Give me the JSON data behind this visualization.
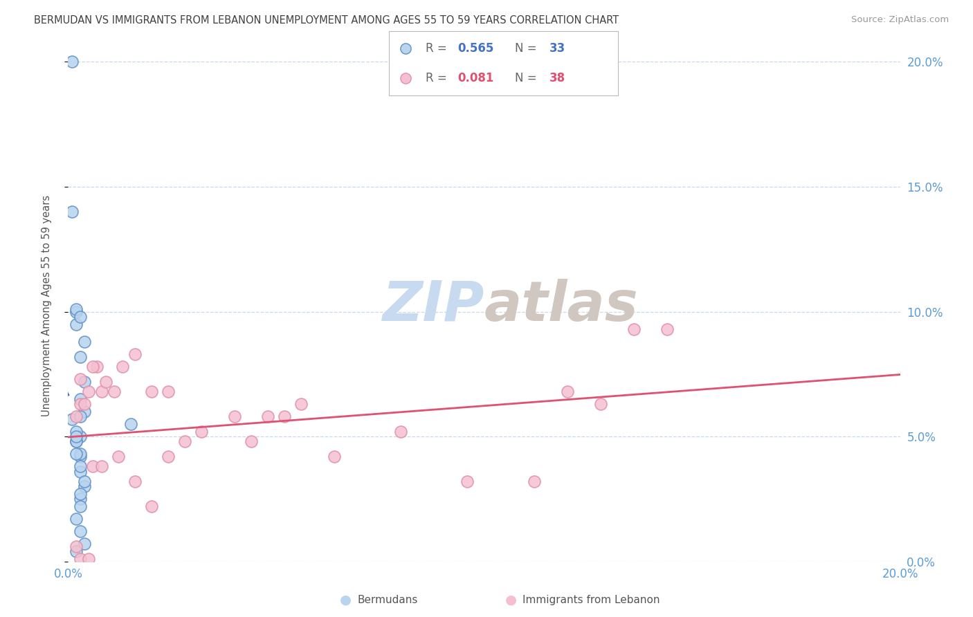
{
  "title": "BERMUDAN VS IMMIGRANTS FROM LEBANON UNEMPLOYMENT AMONG AGES 55 TO 59 YEARS CORRELATION CHART",
  "source": "Source: ZipAtlas.com",
  "ylabel": "Unemployment Among Ages 55 to 59 years",
  "xmin": 0.0,
  "xmax": 0.2,
  "ymin": 0.0,
  "ymax": 0.205,
  "yticks": [
    0.0,
    0.05,
    0.1,
    0.15,
    0.2
  ],
  "ytick_labels": [
    "0.0%",
    "5.0%",
    "10.0%",
    "15.0%",
    "20.0%"
  ],
  "xticks": [
    0.0,
    0.05,
    0.1,
    0.15,
    0.2
  ],
  "xtick_labels": [
    "0.0%",
    "",
    "",
    "",
    "20.0%"
  ],
  "blue_R": "0.565",
  "blue_N": "33",
  "pink_R": "0.081",
  "pink_N": "38",
  "bermudans_x": [
    0.001,
    0.002,
    0.002,
    0.001,
    0.003,
    0.002,
    0.003,
    0.004,
    0.003,
    0.004,
    0.003,
    0.004,
    0.002,
    0.002,
    0.003,
    0.003,
    0.002,
    0.003,
    0.003,
    0.004,
    0.003,
    0.003,
    0.002,
    0.003,
    0.004,
    0.002,
    0.003,
    0.004,
    0.003,
    0.002,
    0.015,
    0.001,
    0.002
  ],
  "bermudans_y": [
    0.14,
    0.1,
    0.095,
    0.057,
    0.05,
    0.101,
    0.098,
    0.088,
    0.082,
    0.072,
    0.065,
    0.06,
    0.052,
    0.048,
    0.042,
    0.058,
    0.048,
    0.043,
    0.036,
    0.03,
    0.025,
    0.022,
    0.017,
    0.012,
    0.007,
    0.043,
    0.038,
    0.032,
    0.027,
    0.05,
    0.055,
    0.2,
    0.004
  ],
  "lebanon_x": [
    0.002,
    0.003,
    0.005,
    0.003,
    0.007,
    0.004,
    0.006,
    0.008,
    0.009,
    0.011,
    0.013,
    0.016,
    0.02,
    0.024,
    0.028,
    0.032,
    0.04,
    0.044,
    0.048,
    0.052,
    0.056,
    0.064,
    0.08,
    0.096,
    0.112,
    0.128,
    0.144,
    0.002,
    0.003,
    0.005,
    0.006,
    0.008,
    0.012,
    0.016,
    0.02,
    0.024,
    0.12,
    0.136
  ],
  "lebanon_y": [
    0.058,
    0.063,
    0.068,
    0.073,
    0.078,
    0.063,
    0.078,
    0.068,
    0.072,
    0.068,
    0.078,
    0.083,
    0.068,
    0.068,
    0.048,
    0.052,
    0.058,
    0.048,
    0.058,
    0.058,
    0.063,
    0.042,
    0.052,
    0.032,
    0.032,
    0.063,
    0.093,
    0.006,
    0.001,
    0.001,
    0.038,
    0.038,
    0.042,
    0.032,
    0.022,
    0.042,
    0.068,
    0.093
  ],
  "blue_line_color": "#4472c4",
  "pink_line_color": "#e05070",
  "blue_scatter_face": "#b8d4ee",
  "blue_scatter_edge": "#6090c8",
  "pink_scatter_face": "#f4c0d0",
  "pink_scatter_edge": "#e090a8",
  "watermark_zip_color": "#c8daf0",
  "watermark_atlas_color": "#d0c8c0",
  "grid_color": "#c8d8e8",
  "tick_color": "#5b9bd5",
  "background_color": "#ffffff",
  "title_color": "#404040",
  "source_color": "#999999"
}
